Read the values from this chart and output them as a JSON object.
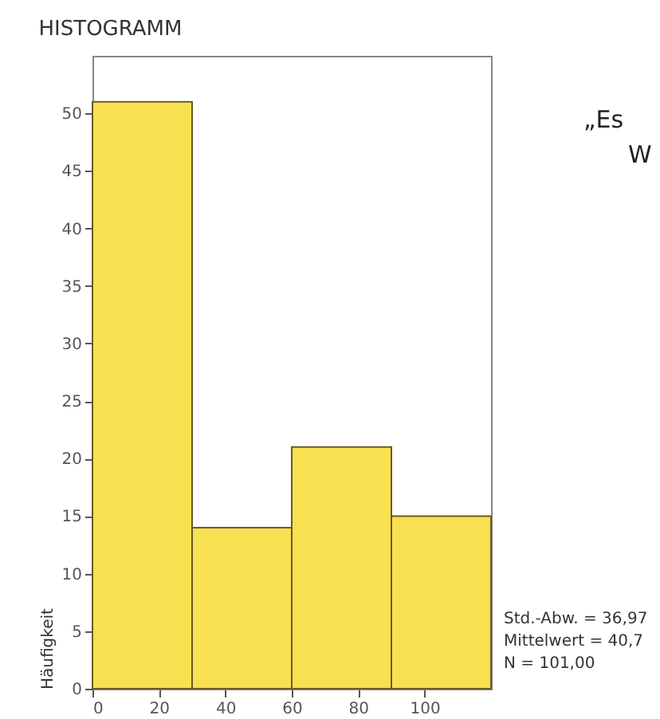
{
  "chart_data": {
    "type": "histogram",
    "title": "HISTOGRAMM",
    "ylabel": "Häufigkeit",
    "bins": [
      0,
      30,
      60,
      90,
      120
    ],
    "values": [
      51,
      14,
      21,
      15
    ],
    "color": "#f7e150",
    "xlim": [
      0,
      120
    ],
    "xticks": [
      0,
      20,
      40,
      60,
      80,
      100
    ],
    "ylim": [
      0,
      55
    ],
    "yticks": [
      0,
      5,
      10,
      15,
      20,
      25,
      30,
      35,
      40,
      45,
      50
    ],
    "grid": false,
    "annotations": [
      "Std.-Abw. = 36,97",
      "Mittelwert = 40,7",
      "N = 101,00",
      "„Es",
      "W"
    ]
  }
}
